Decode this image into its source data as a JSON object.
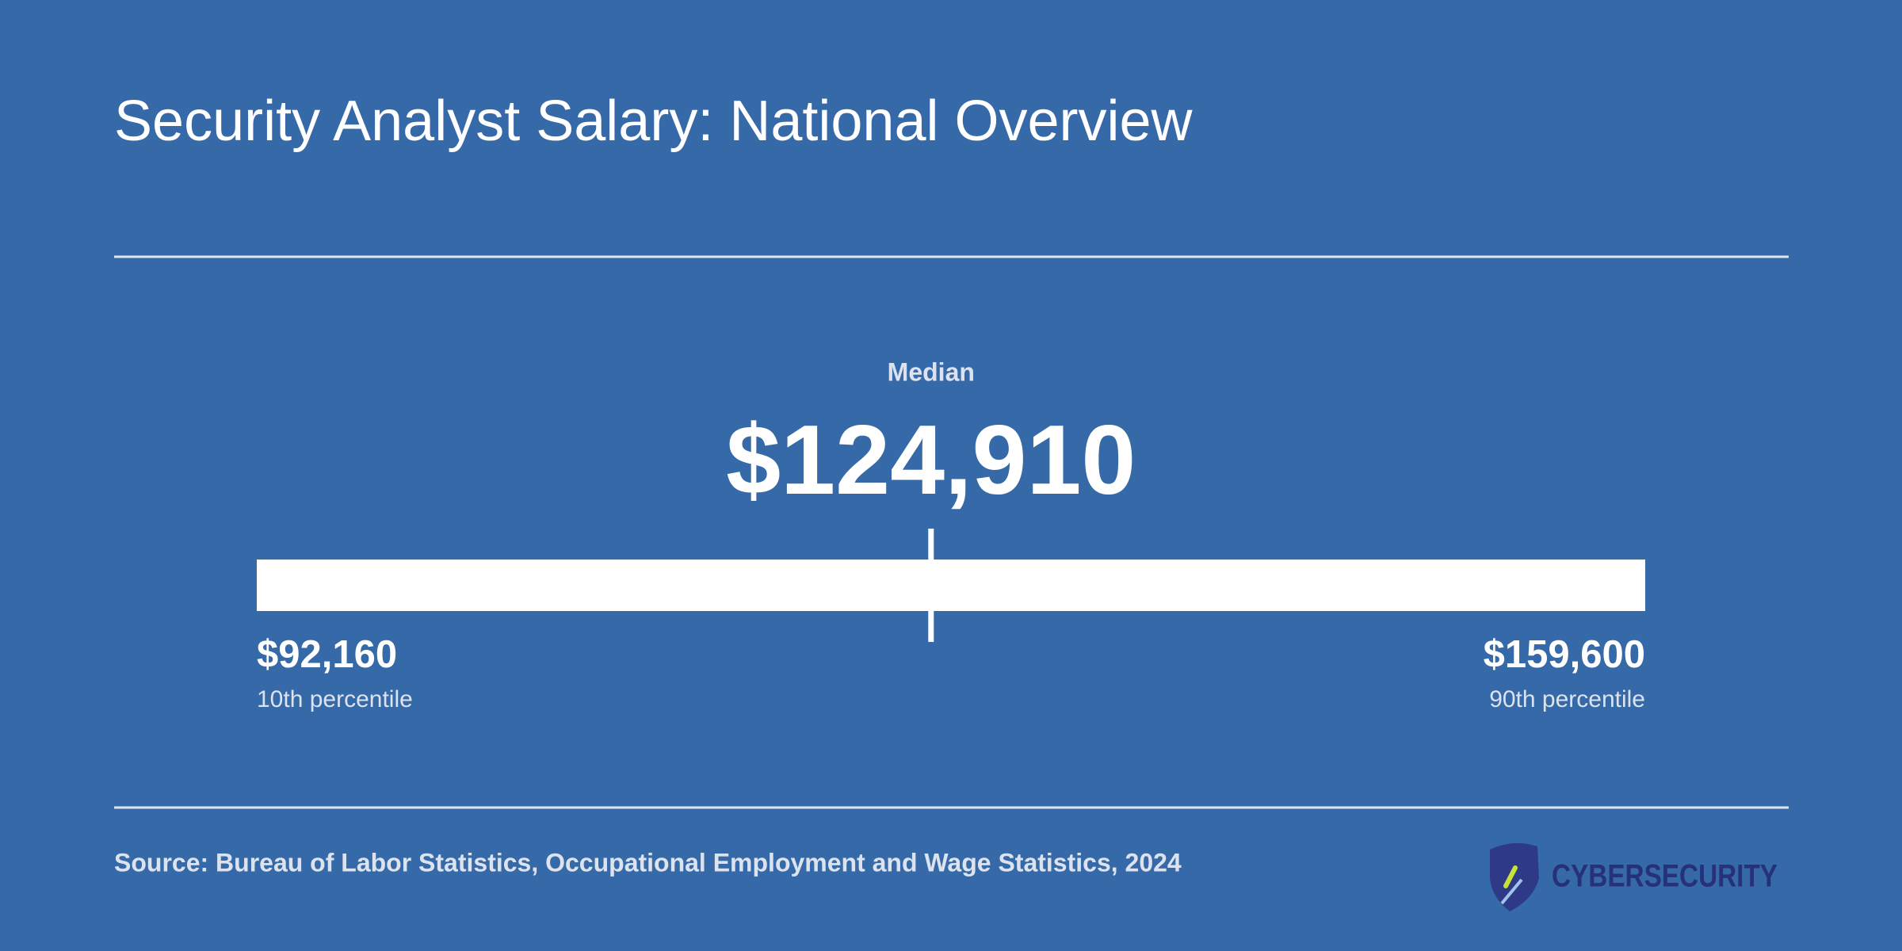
{
  "chart_data": {
    "type": "range",
    "title": "Security Analyst Salary: National Overview",
    "categories": [
      "10th percentile",
      "Median",
      "90th percentile"
    ],
    "values": [
      92160,
      124910,
      159600
    ],
    "value_labels": [
      "$92,160",
      "$124,910",
      "$159,600"
    ],
    "xlim": [
      92160,
      159600
    ],
    "color": "#ffffff",
    "source": "Source: Bureau of Labor Statistics, Occupational Employment and Wage Statistics, 2024",
    "logo": "CYBERSECURITY"
  }
}
